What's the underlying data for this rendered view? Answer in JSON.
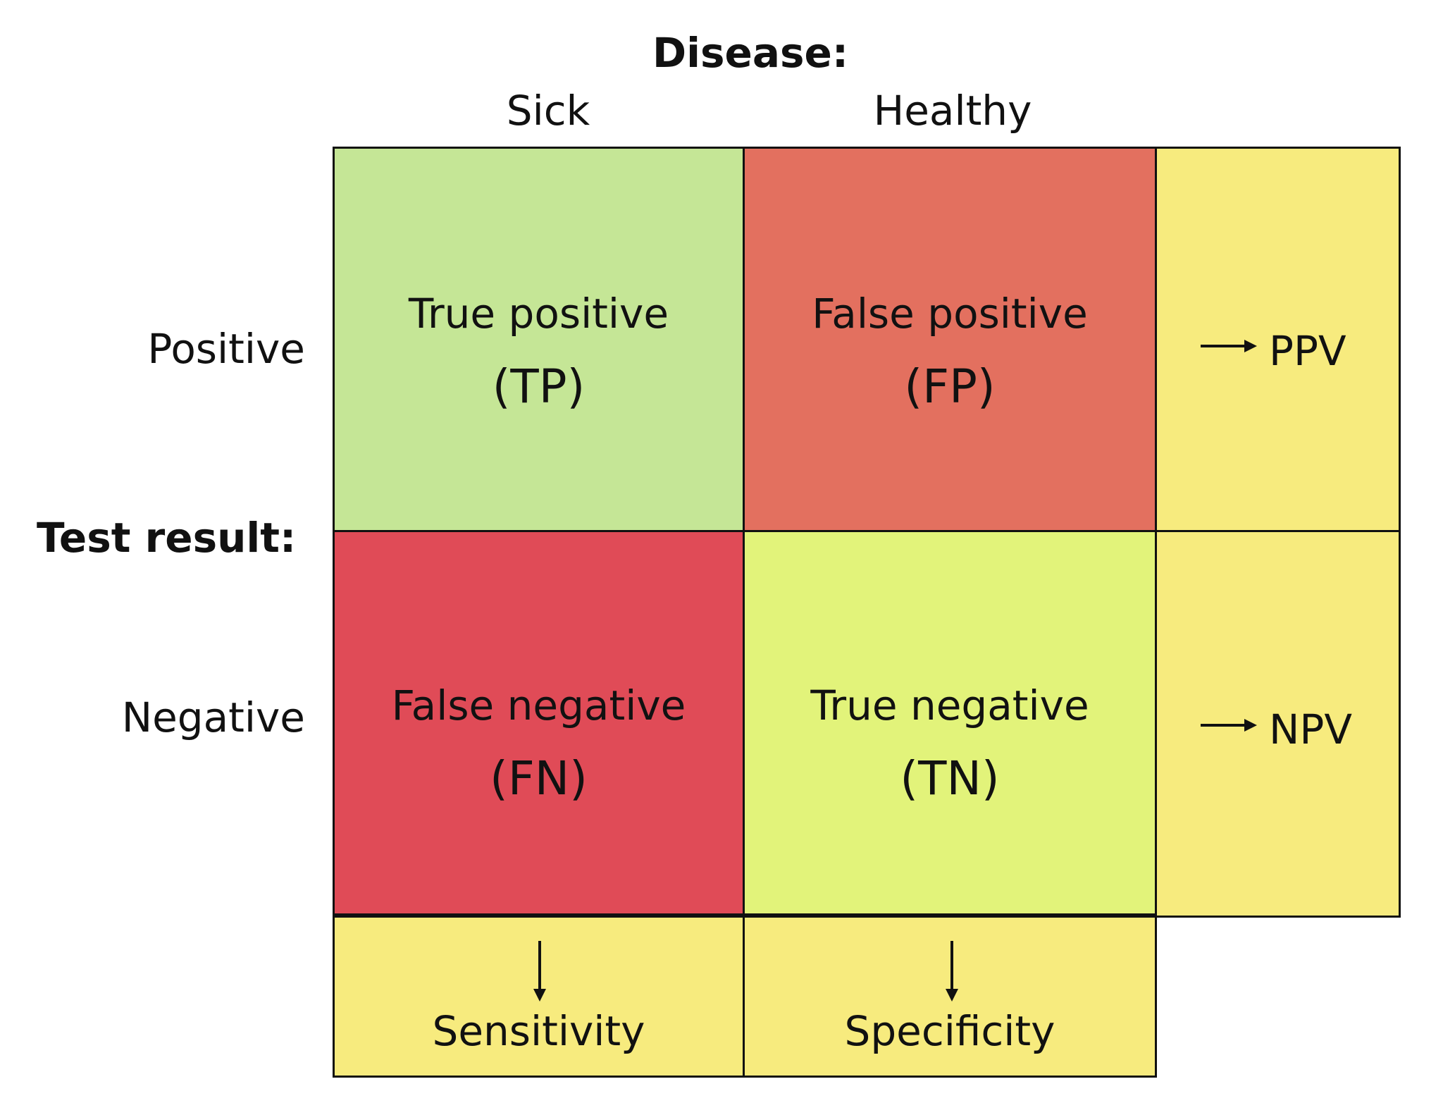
{
  "column_header": {
    "title": "Disease:",
    "sick": "Sick",
    "healthy": "Healthy"
  },
  "row_header": {
    "title": "Test result:",
    "positive": "Positive",
    "negative": "Negative"
  },
  "cells": {
    "tp": {
      "title": "True positive",
      "abbr": "(TP)",
      "color": "#c5e696"
    },
    "fp": {
      "title": "False positive",
      "abbr": "(FP)",
      "color": "#e3705f"
    },
    "fn": {
      "title": "False negative",
      "abbr": "(FN)",
      "color": "#e04b57"
    },
    "tn": {
      "title": "True negative",
      "abbr": "(TN)",
      "color": "#e2f37a"
    }
  },
  "metrics": {
    "ppv": "PPV",
    "npv": "NPV",
    "sensitivity": "Sensitivity",
    "specificity": "Specificity",
    "color": "#f7eb7e"
  },
  "icons": {
    "row_metric_arrow": "arrow-right-icon",
    "column_metric_arrow": "arrow-down-icon"
  }
}
